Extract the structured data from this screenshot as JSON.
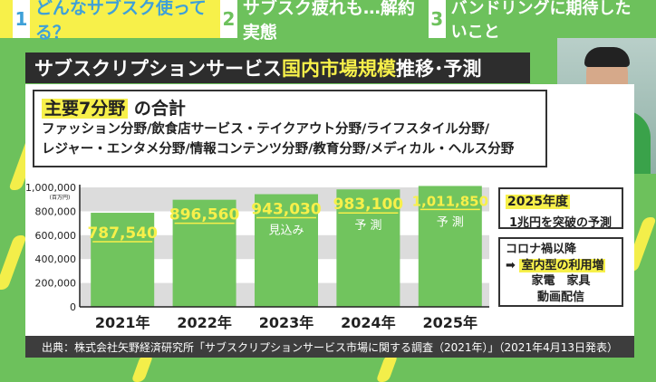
{
  "tabs": [
    {
      "num": "1",
      "label": "どんなサブスク使ってる？",
      "active": true
    },
    {
      "num": "2",
      "label": "サブスク疲れも…解約実態",
      "active": false
    },
    {
      "num": "3",
      "label": "バンドリングに期待したいこと",
      "active": false
    }
  ],
  "title": {
    "main": "サブスクリプションサービス",
    "highlight": "国内市場規模",
    "rest": " 推移･予測"
  },
  "scope": {
    "highlight": "主要7分野",
    "heading": " の合計",
    "line1": "ファッション分野/飲食店サービス・テイクアウト分野/ライフスタイル分野/",
    "line2": "レジャー・エンタメ分野/情報コンテンツ分野/教育分野/メディカル・ヘルス分野"
  },
  "chart_data": {
    "type": "bar",
    "categories": [
      "2021年",
      "2022年",
      "2023年",
      "2024年",
      "2025年"
    ],
    "values": [
      787540,
      896560,
      943030,
      983100,
      1011850
    ],
    "value_labels": [
      "787,540",
      "896,560",
      "943,030",
      "983,100",
      "1,011,850"
    ],
    "bar_notes": [
      "",
      "",
      "見込み",
      "予 測",
      "予 測"
    ],
    "ylabel": "(百万円)",
    "ylim": [
      0,
      1000000
    ],
    "yticks": [
      0,
      200000,
      400000,
      600000,
      800000,
      1000000
    ],
    "ytick_labels": [
      "0",
      "200,000",
      "400,000",
      "600,000",
      "800,000",
      "1,000,000"
    ],
    "grid": "alternating bands",
    "colors": {
      "bar": "#71c45e",
      "label": "#f7f04a",
      "band": "#dcdcdc"
    }
  },
  "notes": {
    "box1": {
      "highlight": "2025年度",
      "text": "1兆円を突破の予測"
    },
    "box2": {
      "line1": "コロナ禍以降",
      "arrow": "➡",
      "highlight": "室内型の利用増",
      "line3": "家電　家具",
      "line4": "動画配信"
    }
  },
  "footer": "出典：株式会社矢野経済研究所「サブスクリプションサービス市場に関する調査（2021年）」（2021年4月13日発表）"
}
